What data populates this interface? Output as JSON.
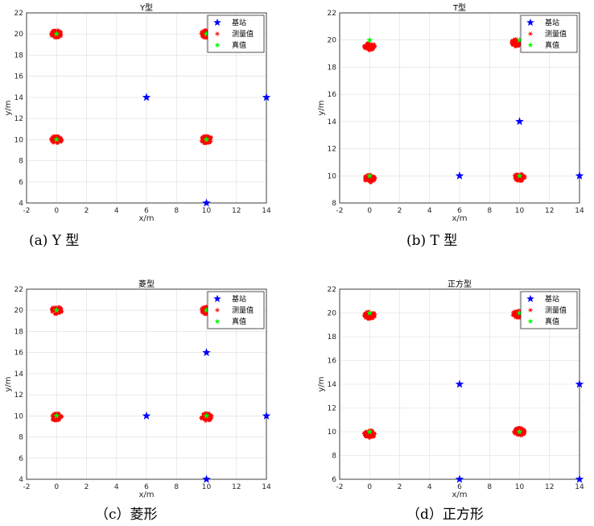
{
  "colors": {
    "station": "#0000ff",
    "measured": "#ff0000",
    "truth": "#00ff00"
  },
  "legend": {
    "station": "基站",
    "measured": "测量值",
    "truth": "真值"
  },
  "chart_data": [
    {
      "type": "scatter",
      "title": "Y型",
      "caption": "(a) Y 型",
      "xlabel": "x/m",
      "ylabel": "y/m",
      "xlim": [
        -2,
        14
      ],
      "ylim": [
        4,
        22
      ],
      "xticks": [
        -2,
        0,
        2,
        4,
        6,
        8,
        10,
        12,
        14
      ],
      "yticks": [
        4,
        6,
        8,
        10,
        12,
        14,
        16,
        18,
        20,
        22
      ],
      "grid": true,
      "legend_position": "top-right",
      "stations": [
        [
          6,
          14
        ],
        [
          14,
          14
        ],
        [
          10,
          4
        ]
      ],
      "truth": [
        [
          0,
          20
        ],
        [
          10,
          20
        ],
        [
          0,
          10
        ],
        [
          10,
          10
        ]
      ],
      "measured_clusters": [
        [
          0,
          20
        ],
        [
          10,
          20
        ],
        [
          0,
          10
        ],
        [
          10,
          10
        ]
      ]
    },
    {
      "type": "scatter",
      "title": "T型",
      "caption": "(b)  T 型",
      "xlabel": "x/m",
      "ylabel": "y/m",
      "xlim": [
        -2,
        14
      ],
      "ylim": [
        8,
        22
      ],
      "xticks": [
        -2,
        0,
        2,
        4,
        6,
        8,
        10,
        12,
        14
      ],
      "yticks": [
        8,
        10,
        12,
        14,
        16,
        18,
        20,
        22
      ],
      "grid": true,
      "legend_position": "top-right",
      "stations": [
        [
          10,
          14
        ],
        [
          6,
          10
        ],
        [
          14,
          10
        ]
      ],
      "truth": [
        [
          0,
          20
        ],
        [
          10,
          20
        ],
        [
          0,
          10
        ],
        [
          10,
          10
        ]
      ],
      "measured_clusters": [
        [
          0,
          19.5
        ],
        [
          9.8,
          19.8
        ],
        [
          0,
          9.8
        ],
        [
          10,
          9.9
        ]
      ]
    },
    {
      "type": "scatter",
      "title": "菱型",
      "caption": "（c）菱形",
      "xlabel": "x/m",
      "ylabel": "y/m",
      "xlim": [
        -2,
        14
      ],
      "ylim": [
        4,
        22
      ],
      "xticks": [
        -2,
        0,
        2,
        4,
        6,
        8,
        10,
        12,
        14
      ],
      "yticks": [
        4,
        6,
        8,
        10,
        12,
        14,
        16,
        18,
        20,
        22
      ],
      "grid": true,
      "legend_position": "top-right",
      "stations": [
        [
          10,
          16
        ],
        [
          6,
          10
        ],
        [
          14,
          10
        ],
        [
          10,
          4
        ]
      ],
      "truth": [
        [
          0,
          20
        ],
        [
          10,
          20
        ],
        [
          0,
          10
        ],
        [
          10,
          10
        ]
      ],
      "measured_clusters": [
        [
          0,
          20
        ],
        [
          10,
          20
        ],
        [
          0,
          9.9
        ],
        [
          10,
          9.9
        ]
      ]
    },
    {
      "type": "scatter",
      "title": "正方型",
      "caption": "（d）正方形",
      "xlabel": "x/m",
      "ylabel": "y/m",
      "xlim": [
        -2,
        14
      ],
      "ylim": [
        6,
        22
      ],
      "xticks": [
        -2,
        0,
        2,
        4,
        6,
        8,
        10,
        12,
        14
      ],
      "yticks": [
        6,
        8,
        10,
        12,
        14,
        16,
        18,
        20,
        22
      ],
      "grid": true,
      "legend_position": "top-right",
      "stations": [
        [
          6,
          14
        ],
        [
          14,
          14
        ],
        [
          6,
          6
        ],
        [
          14,
          6
        ]
      ],
      "truth": [
        [
          0,
          20
        ],
        [
          10,
          20
        ],
        [
          0,
          10
        ],
        [
          10,
          10
        ]
      ],
      "measured_clusters": [
        [
          0,
          19.8
        ],
        [
          9.9,
          19.9
        ],
        [
          0,
          9.8
        ],
        [
          10,
          10
        ]
      ]
    }
  ]
}
